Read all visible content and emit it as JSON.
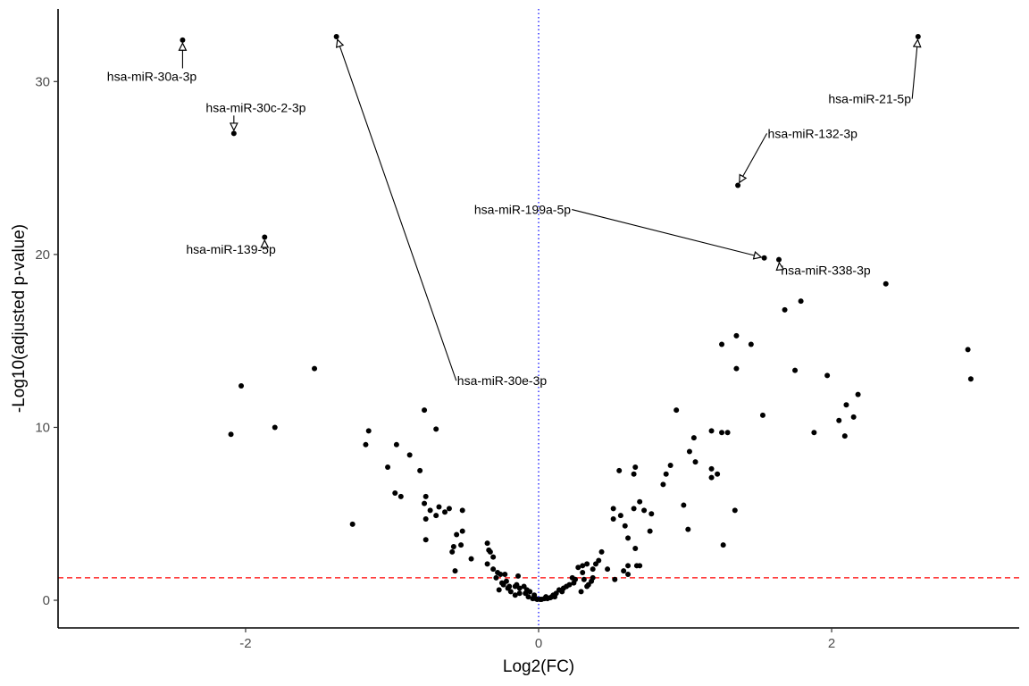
{
  "chart_data": {
    "type": "scatter",
    "title": "",
    "xlabel": "Log2(FC)",
    "ylabel": "-Log10(adjusted p-value)",
    "xlim": [
      -3.28,
      3.28
    ],
    "ylim": [
      -1.6,
      34.2
    ],
    "x_ticks": [
      -2,
      0,
      2
    ],
    "y_ticks": [
      0,
      10,
      20,
      30
    ],
    "grid": false,
    "colors": {
      "points": "#000000",
      "threshold_line": "#ff0000",
      "zero_line": "#0000ff",
      "axis": "#000000",
      "tick_text": "#4d4d4d"
    },
    "reference_lines": [
      {
        "orientation": "horizontal",
        "value": 1.3,
        "style": "dashed",
        "color": "#ff0000"
      },
      {
        "orientation": "vertical",
        "value": 0,
        "style": "dotted",
        "color": "#0000ff"
      }
    ],
    "points": [
      [
        -2.43,
        32.4
      ],
      [
        -1.38,
        32.6
      ],
      [
        2.59,
        32.6
      ],
      [
        -2.08,
        27.0
      ],
      [
        1.36,
        24.0
      ],
      [
        -1.87,
        21.0
      ],
      [
        1.54,
        19.8
      ],
      [
        1.64,
        19.7
      ],
      [
        2.37,
        18.3
      ],
      [
        1.79,
        17.3
      ],
      [
        1.68,
        16.8
      ],
      [
        1.35,
        15.3
      ],
      [
        1.25,
        14.8
      ],
      [
        1.45,
        14.8
      ],
      [
        2.93,
        14.5
      ],
      [
        -1.53,
        13.4
      ],
      [
        1.35,
        13.4
      ],
      [
        1.75,
        13.3
      ],
      [
        1.97,
        13.0
      ],
      [
        2.95,
        12.8
      ],
      [
        -2.03,
        12.4
      ],
      [
        2.18,
        11.9
      ],
      [
        2.1,
        11.3
      ],
      [
        0.94,
        11.0
      ],
      [
        -0.78,
        11.0
      ],
      [
        1.53,
        10.7
      ],
      [
        2.15,
        10.6
      ],
      [
        2.05,
        10.4
      ],
      [
        -1.8,
        10.0
      ],
      [
        -0.7,
        9.9
      ],
      [
        -1.16,
        9.8
      ],
      [
        1.18,
        9.8
      ],
      [
        1.25,
        9.7
      ],
      [
        1.29,
        9.7
      ],
      [
        1.88,
        9.7
      ],
      [
        -2.1,
        9.6
      ],
      [
        2.09,
        9.5
      ],
      [
        1.06,
        9.4
      ],
      [
        -0.97,
        9.0
      ],
      [
        -1.18,
        9.0
      ],
      [
        1.03,
        8.6
      ],
      [
        -0.88,
        8.4
      ],
      [
        1.07,
        8.0
      ],
      [
        0.9,
        7.8
      ],
      [
        0.66,
        7.7
      ],
      [
        -1.03,
        7.7
      ],
      [
        1.18,
        7.6
      ],
      [
        0.55,
        7.5
      ],
      [
        -0.81,
        7.5
      ],
      [
        0.87,
        7.3
      ],
      [
        1.22,
        7.3
      ],
      [
        0.65,
        7.3
      ],
      [
        1.18,
        7.1
      ],
      [
        0.85,
        6.7
      ],
      [
        -0.98,
        6.2
      ],
      [
        -0.77,
        6.0
      ],
      [
        -0.94,
        6.0
      ],
      [
        0.69,
        5.7
      ],
      [
        -0.78,
        5.6
      ],
      [
        0.99,
        5.5
      ],
      [
        -0.68,
        5.4
      ],
      [
        0.51,
        5.3
      ],
      [
        -0.61,
        5.3
      ],
      [
        0.65,
        5.3
      ],
      [
        -0.52,
        5.2
      ],
      [
        0.72,
        5.2
      ],
      [
        -0.74,
        5.2
      ],
      [
        1.34,
        5.2
      ],
      [
        -0.64,
        5.1
      ],
      [
        0.77,
        5.0
      ],
      [
        -0.7,
        4.9
      ],
      [
        0.56,
        4.9
      ],
      [
        -0.77,
        4.7
      ],
      [
        0.51,
        4.7
      ],
      [
        -1.27,
        4.4
      ],
      [
        0.59,
        4.3
      ],
      [
        1.02,
        4.1
      ],
      [
        0.76,
        4.0
      ],
      [
        -0.52,
        4.0
      ],
      [
        -0.56,
        3.8
      ],
      [
        0.61,
        3.6
      ],
      [
        -0.77,
        3.5
      ],
      [
        -0.35,
        3.3
      ],
      [
        -0.53,
        3.2
      ],
      [
        1.26,
        3.2
      ],
      [
        -0.58,
        3.1
      ],
      [
        0.66,
        3.0
      ],
      [
        -0.34,
        2.9
      ],
      [
        -0.33,
        2.8
      ],
      [
        0.43,
        2.8
      ],
      [
        -0.59,
        2.8
      ],
      [
        -0.31,
        2.5
      ],
      [
        -0.46,
        2.4
      ],
      [
        0.41,
        2.3
      ],
      [
        0.33,
        2.1
      ],
      [
        -0.35,
        2.1
      ],
      [
        0.39,
        2.1
      ],
      [
        0.67,
        2.0
      ],
      [
        0.61,
        2.0
      ],
      [
        0.69,
        2.0
      ],
      [
        0.3,
        2.0
      ],
      [
        0.27,
        1.9
      ],
      [
        0.37,
        1.8
      ],
      [
        0.47,
        1.8
      ],
      [
        -0.31,
        1.8
      ],
      [
        0.58,
        1.7
      ],
      [
        -0.57,
        1.7
      ],
      [
        -0.28,
        1.6
      ],
      [
        0.3,
        1.6
      ],
      [
        -0.23,
        1.5
      ],
      [
        0.61,
        1.5
      ],
      [
        -0.26,
        1.5
      ],
      [
        -0.14,
        1.4
      ],
      [
        0.37,
        1.3
      ],
      [
        0.23,
        1.3
      ],
      [
        -0.29,
        1.3
      ],
      [
        0.25,
        1.2
      ],
      [
        0.52,
        1.2
      ],
      [
        0.31,
        1.2
      ],
      [
        -0.22,
        1.1
      ],
      [
        0.36,
        1.1
      ],
      [
        -0.25,
        1.0
      ],
      [
        0.24,
        1.0
      ],
      [
        0.34,
        0.9
      ],
      [
        -0.15,
        0.9
      ],
      [
        -0.24,
        0.9
      ],
      [
        0.21,
        0.9
      ],
      [
        0.33,
        0.8
      ],
      [
        -0.2,
        0.8
      ],
      [
        0.19,
        0.8
      ],
      [
        -0.16,
        0.8
      ],
      [
        -0.1,
        0.8
      ],
      [
        -0.21,
        0.7
      ],
      [
        0.17,
        0.7
      ],
      [
        -0.13,
        0.7
      ],
      [
        -0.08,
        0.6
      ],
      [
        0.14,
        0.6
      ],
      [
        -0.27,
        0.6
      ],
      [
        0.29,
        0.5
      ],
      [
        -0.19,
        0.5
      ],
      [
        0.16,
        0.5
      ],
      [
        -0.06,
        0.5
      ],
      [
        -0.13,
        0.4
      ],
      [
        0.12,
        0.4
      ],
      [
        -0.09,
        0.4
      ],
      [
        -0.16,
        0.3
      ],
      [
        0.1,
        0.3
      ],
      [
        -0.03,
        0.3
      ],
      [
        0.05,
        0.2
      ],
      [
        -0.07,
        0.2
      ],
      [
        0.09,
        0.2
      ],
      [
        -0.02,
        0.1
      ],
      [
        0.04,
        0.1
      ],
      [
        0.01,
        0.05
      ],
      [
        -0.01,
        0.05
      ],
      [
        0.06,
        0.1
      ],
      [
        0.02,
        0.05
      ],
      [
        0.08,
        0.15
      ],
      [
        -0.04,
        0.1
      ],
      [
        0.11,
        0.2
      ]
    ],
    "annotations": [
      {
        "label": "hsa-miR-30a-3p",
        "target": [
          -2.43,
          32.4
        ],
        "label_at": [
          -2.64,
          30.3
        ]
      },
      {
        "label": "hsa-miR-30c-2-3p",
        "target": [
          -2.08,
          27.0
        ],
        "label_at": [
          -1.93,
          28.5
        ]
      },
      {
        "label": "hsa-miR-139-5p",
        "target": [
          -1.87,
          21.0
        ],
        "label_at": [
          -2.1,
          20.3
        ]
      },
      {
        "label": "hsa-miR-30e-3p",
        "target": [
          -1.38,
          32.6
        ],
        "label_at": [
          -0.25,
          12.7
        ]
      },
      {
        "label": "hsa-miR-21-5p",
        "target": [
          2.59,
          32.6
        ],
        "label_at": [
          2.26,
          29.0
        ]
      },
      {
        "label": "hsa-miR-132-3p",
        "target": [
          1.36,
          24.0
        ],
        "label_at": [
          1.87,
          27.0
        ]
      },
      {
        "label": "hsa-miR-199a-5p",
        "target": [
          1.54,
          19.8
        ],
        "label_at": [
          -0.11,
          22.6
        ]
      },
      {
        "label": "hsa-miR-338-3p",
        "target": [
          1.64,
          19.7
        ],
        "label_at": [
          1.96,
          19.1
        ]
      }
    ]
  }
}
